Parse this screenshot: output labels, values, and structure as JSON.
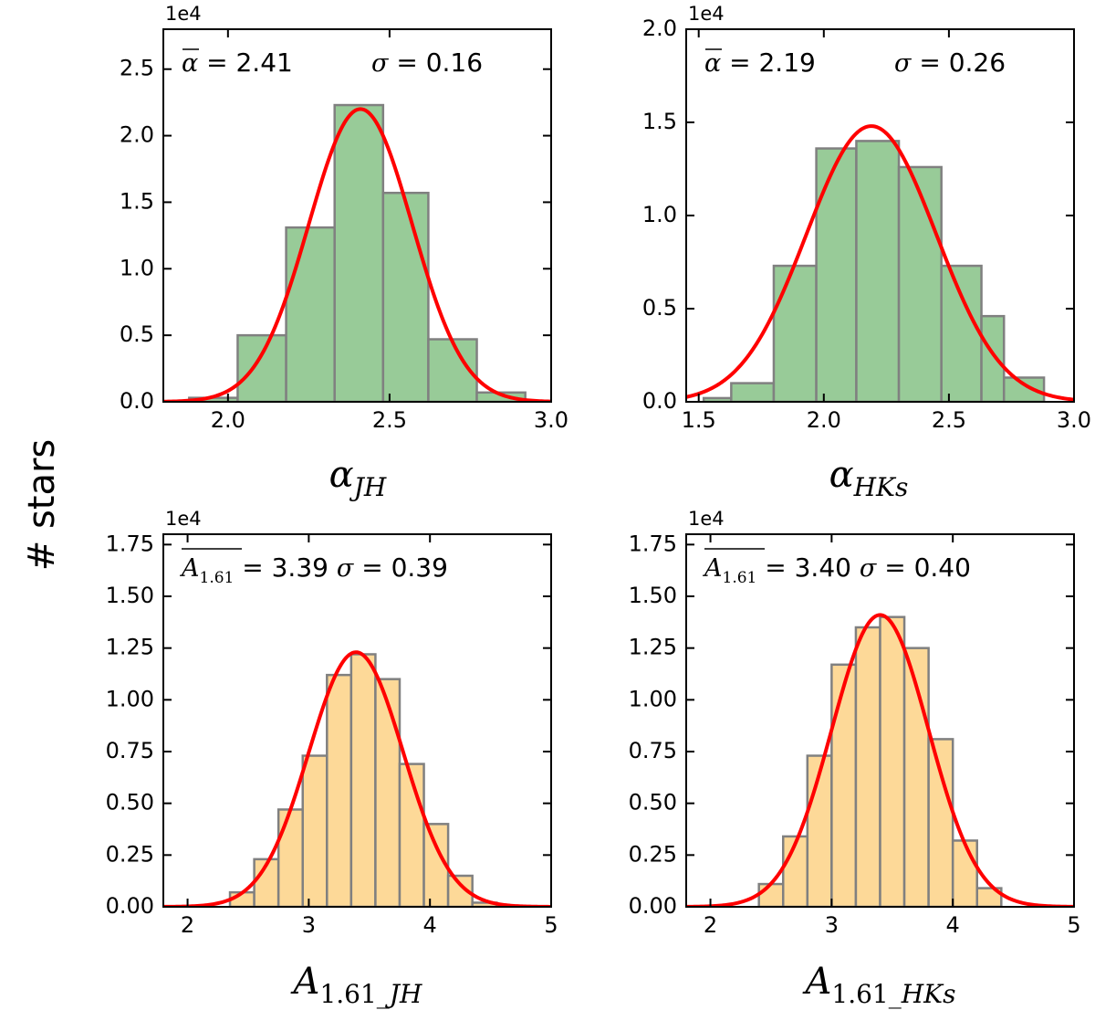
{
  "figure": {
    "ylabel": "# stars"
  },
  "colors": {
    "green": "#98cb98",
    "orange": "#fdd998",
    "edge": "#808080",
    "fit": "#ff0000"
  },
  "chart_data": [
    {
      "id": "p0",
      "type": "bar",
      "title": "",
      "multiplier": "1e4",
      "xlabel": {
        "main": "α",
        "sub": "JH"
      },
      "xlim": [
        1.8,
        3.0
      ],
      "ylim": [
        0,
        2.8
      ],
      "xticks": [
        2.0,
        2.5,
        3.0
      ],
      "yticks": [
        0.0,
        0.5,
        1.0,
        1.5,
        2.0,
        2.5
      ],
      "xtick_labels": [
        "2.0",
        "2.5",
        "3.0"
      ],
      "ytick_labels": [
        "0.0",
        "0.5",
        "1.0",
        "1.5",
        "2.0",
        "2.5"
      ],
      "stats": {
        "mean_symbol": "α",
        "mean": "= 2.41",
        "sigma_symbol": "σ",
        "sigma": "=  0.16"
      },
      "bins": [
        {
          "x0": 1.88,
          "x1": 2.03,
          "y": 0.03
        },
        {
          "x0": 2.03,
          "x1": 2.18,
          "y": 0.5
        },
        {
          "x0": 2.18,
          "x1": 2.33,
          "y": 1.31
        },
        {
          "x0": 2.33,
          "x1": 2.48,
          "y": 2.23
        },
        {
          "x0": 2.48,
          "x1": 2.62,
          "y": 1.57
        },
        {
          "x0": 2.62,
          "x1": 2.77,
          "y": 0.47
        },
        {
          "x0": 2.77,
          "x1": 2.92,
          "y": 0.07
        }
      ],
      "fit": {
        "mu": 2.41,
        "sigma": 0.16,
        "amp": 2.2
      }
    },
    {
      "id": "p1",
      "type": "bar",
      "title": "",
      "multiplier": "1e4",
      "xlabel": {
        "main": "α",
        "sub": "HKs"
      },
      "xlim": [
        1.45,
        3.0
      ],
      "ylim": [
        0,
        2.0
      ],
      "xticks": [
        1.5,
        2.0,
        2.5,
        3.0
      ],
      "yticks": [
        0.0,
        0.5,
        1.0,
        1.5,
        2.0
      ],
      "xtick_labels": [
        "1.5",
        "2.0",
        "2.5",
        "3.0"
      ],
      "ytick_labels": [
        "0.0",
        "0.5",
        "1.0",
        "1.5",
        "2.0"
      ],
      "stats": {
        "mean_symbol": "α",
        "mean": "= 2.19",
        "sigma_symbol": "σ",
        "sigma": "=  0.26"
      },
      "bins": [
        {
          "x0": 1.52,
          "x1": 1.63,
          "y": 0.02
        },
        {
          "x0": 1.63,
          "x1": 1.8,
          "y": 0.1
        },
        {
          "x0": 1.8,
          "x1": 1.97,
          "y": 0.73
        },
        {
          "x0": 1.97,
          "x1": 2.13,
          "y": 1.36
        },
        {
          "x0": 2.13,
          "x1": 2.3,
          "y": 1.4
        },
        {
          "x0": 2.3,
          "x1": 2.47,
          "y": 1.26
        },
        {
          "x0": 2.47,
          "x1": 2.63,
          "y": 0.73
        },
        {
          "x0": 2.63,
          "x1": 2.72,
          "y": 0.46
        },
        {
          "x0": 2.72,
          "x1": 2.88,
          "y": 0.13
        }
      ],
      "fit": {
        "mu": 2.19,
        "sigma": 0.26,
        "amp": 1.48
      }
    },
    {
      "id": "p2",
      "type": "bar",
      "title": "",
      "multiplier": "1e4",
      "xlabel": {
        "main": "A",
        "sub": "1.61_JH"
      },
      "xlim": [
        1.8,
        5.0
      ],
      "ylim": [
        0,
        1.8
      ],
      "xticks": [
        2,
        3,
        4,
        5
      ],
      "yticks": [
        0.0,
        0.25,
        0.5,
        0.75,
        1.0,
        1.25,
        1.5,
        1.75
      ],
      "xtick_labels": [
        "2",
        "3",
        "4",
        "5"
      ],
      "ytick_labels": [
        "0.00",
        "0.25",
        "0.50",
        "0.75",
        "1.00",
        "1.25",
        "1.50",
        "1.75"
      ],
      "stats": {
        "mean_symbol": "A",
        "mean_sub": "1.61",
        "mean": "= 3.39",
        "sigma_symbol": "σ",
        "sigma": "=  0.39"
      },
      "bins": [
        {
          "x0": 2.35,
          "x1": 2.55,
          "y": 0.07
        },
        {
          "x0": 2.55,
          "x1": 2.75,
          "y": 0.23
        },
        {
          "x0": 2.75,
          "x1": 2.95,
          "y": 0.47
        },
        {
          "x0": 2.95,
          "x1": 3.15,
          "y": 0.73
        },
        {
          "x0": 3.15,
          "x1": 3.35,
          "y": 1.12
        },
        {
          "x0": 3.35,
          "x1": 3.55,
          "y": 1.22
        },
        {
          "x0": 3.55,
          "x1": 3.75,
          "y": 1.1
        },
        {
          "x0": 3.75,
          "x1": 3.95,
          "y": 0.69
        },
        {
          "x0": 3.95,
          "x1": 4.15,
          "y": 0.4
        },
        {
          "x0": 4.15,
          "x1": 4.35,
          "y": 0.15
        },
        {
          "x0": 4.35,
          "x1": 4.55,
          "y": 0.02
        }
      ],
      "fit": {
        "mu": 3.39,
        "sigma": 0.39,
        "amp": 1.23
      }
    },
    {
      "id": "p3",
      "type": "bar",
      "title": "",
      "multiplier": "1e4",
      "xlabel": {
        "main": "A",
        "sub": "1.61_HKs"
      },
      "xlim": [
        1.8,
        5.0
      ],
      "ylim": [
        0,
        1.8
      ],
      "xticks": [
        2,
        3,
        4,
        5
      ],
      "yticks": [
        0.0,
        0.25,
        0.5,
        0.75,
        1.0,
        1.25,
        1.5,
        1.75
      ],
      "xtick_labels": [
        "2",
        "3",
        "4",
        "5"
      ],
      "ytick_labels": [
        "0.00",
        "0.25",
        "0.50",
        "0.75",
        "1.00",
        "1.25",
        "1.50",
        "1.75"
      ],
      "stats": {
        "mean_symbol": "A",
        "mean_sub": "1.61",
        "mean": "= 3.40",
        "sigma_symbol": "σ",
        "sigma": "=  0.40"
      },
      "bins": [
        {
          "x0": 2.4,
          "x1": 2.6,
          "y": 0.11
        },
        {
          "x0": 2.6,
          "x1": 2.8,
          "y": 0.34
        },
        {
          "x0": 2.8,
          "x1": 3.0,
          "y": 0.73
        },
        {
          "x0": 3.0,
          "x1": 3.2,
          "y": 1.17
        },
        {
          "x0": 3.2,
          "x1": 3.4,
          "y": 1.35
        },
        {
          "x0": 3.4,
          "x1": 3.6,
          "y": 1.4
        },
        {
          "x0": 3.6,
          "x1": 3.8,
          "y": 1.25
        },
        {
          "x0": 3.8,
          "x1": 4.0,
          "y": 0.81
        },
        {
          "x0": 4.0,
          "x1": 4.2,
          "y": 0.32
        },
        {
          "x0": 4.2,
          "x1": 4.4,
          "y": 0.09
        }
      ],
      "fit": {
        "mu": 3.4,
        "sigma": 0.4,
        "amp": 1.41
      }
    }
  ]
}
